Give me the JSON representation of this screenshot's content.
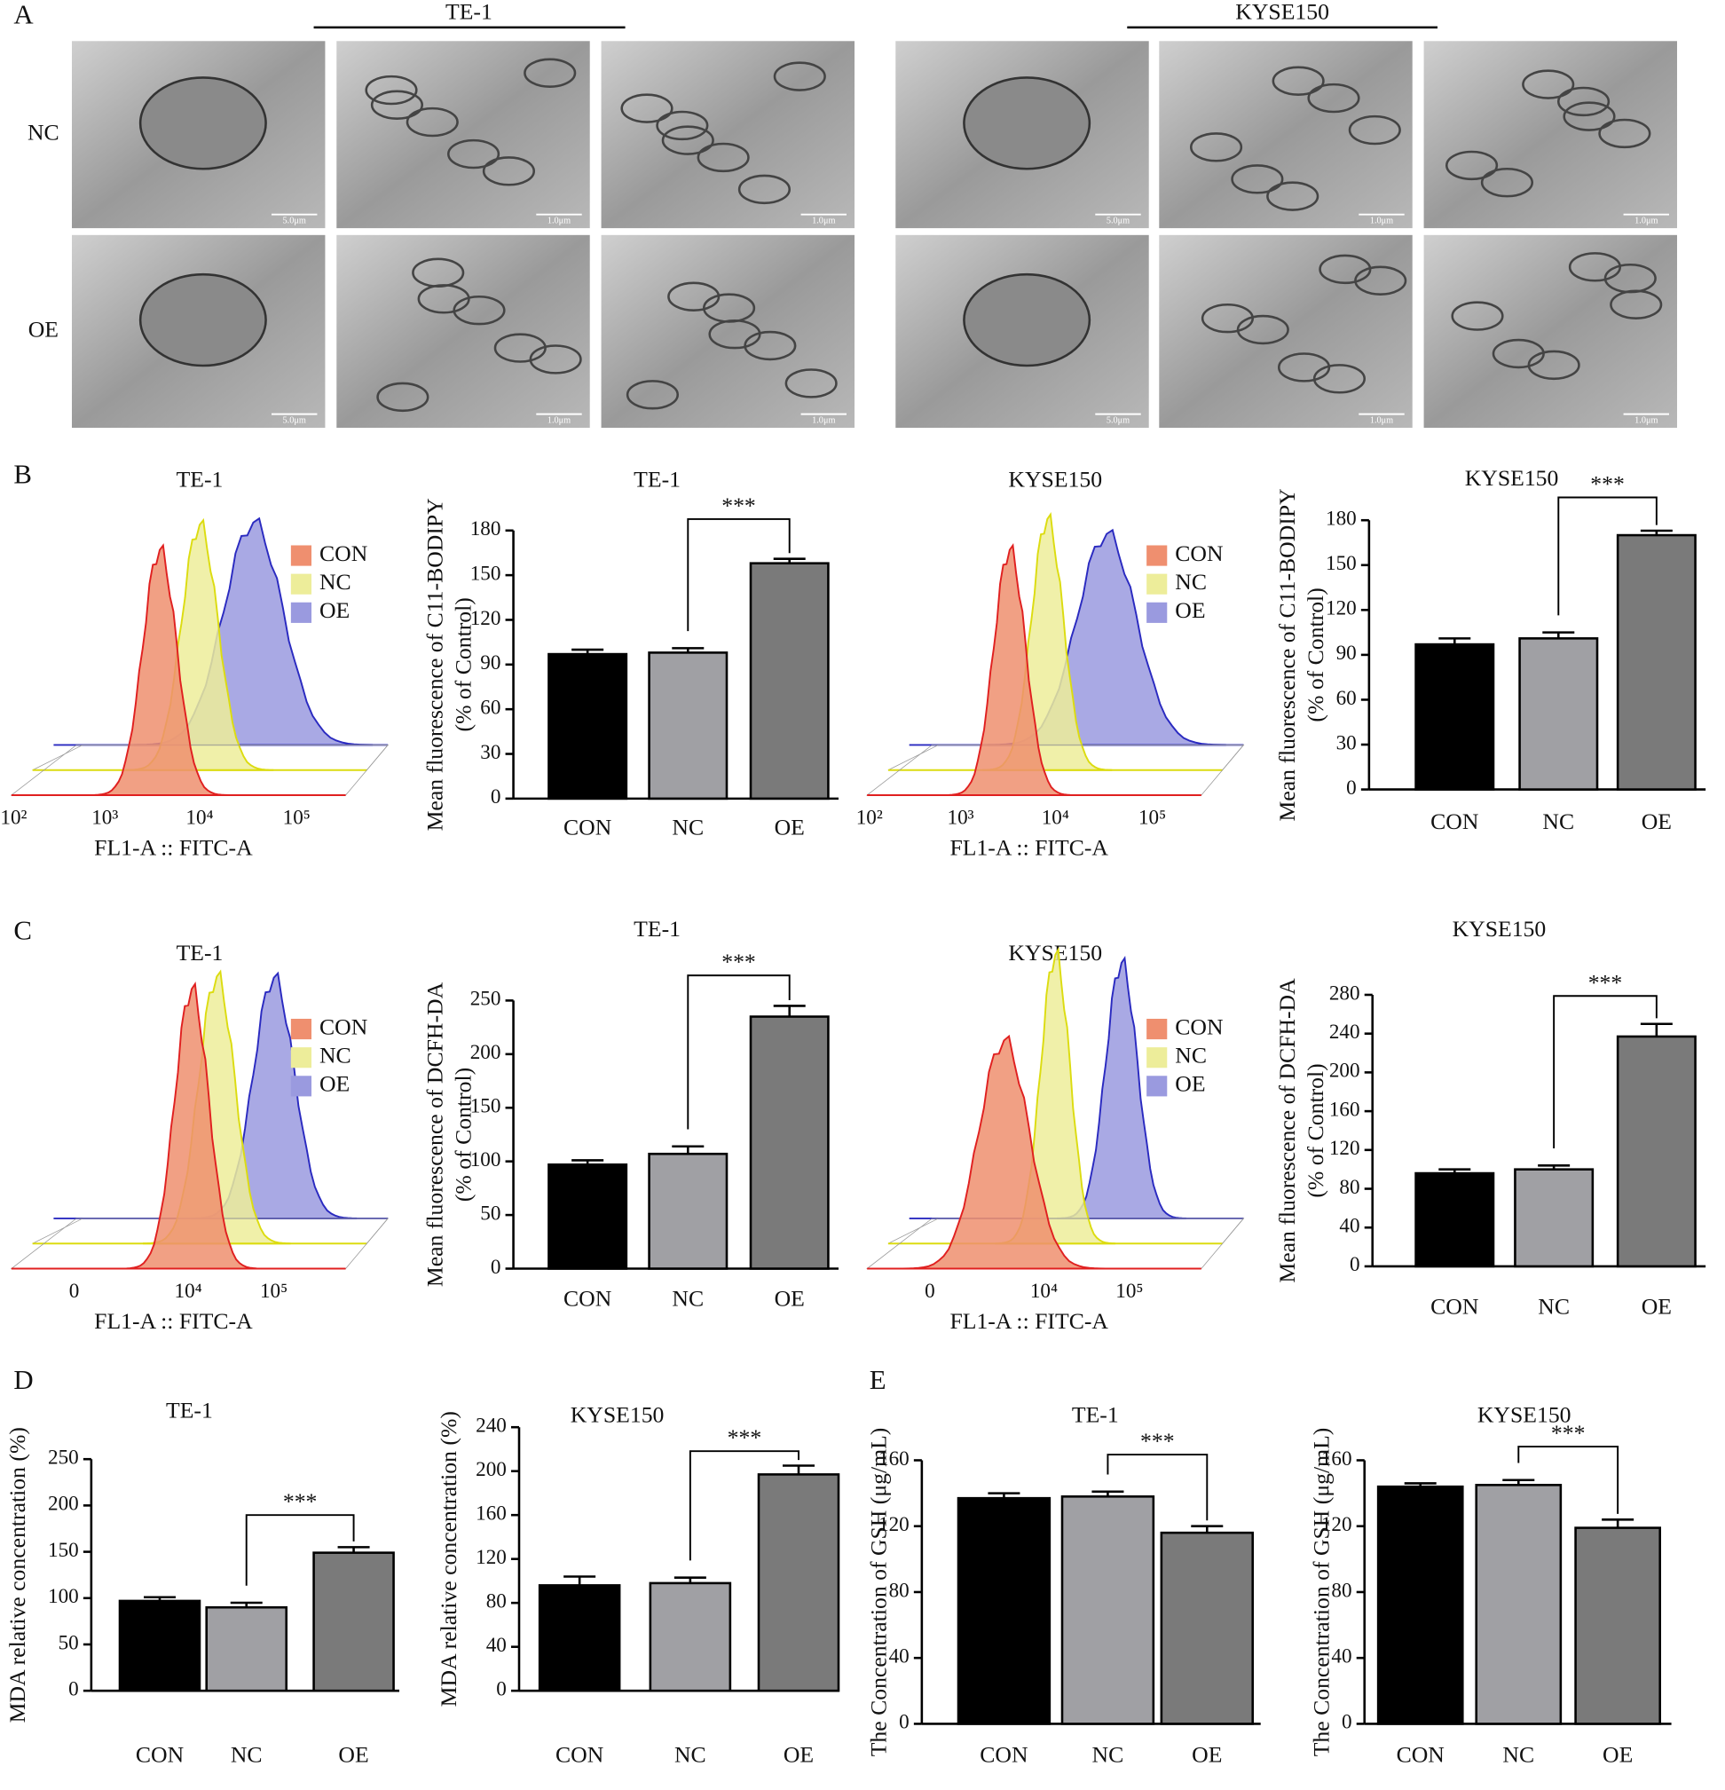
{
  "panel_labels": [
    "A",
    "B",
    "C",
    "D",
    "E"
  ],
  "tem": {
    "groups": [
      "TE-1",
      "KYSE150"
    ],
    "rows": [
      "NC",
      "OE"
    ],
    "scale_bars": [
      "5.0μm",
      "1.0μm",
      "1.0μm",
      "5.0μm",
      "1.0μm",
      "1.0μm"
    ]
  },
  "flow_panels": [
    {
      "title": "TE-1",
      "xlabel": "FL1-A :: FITC-A",
      "xtick_labels": [
        "10²",
        "10³",
        "10⁴",
        "10⁵"
      ],
      "legend": [
        {
          "name": "CON",
          "color": "#ef8f6f"
        },
        {
          "name": "NC",
          "color": "#eded9a"
        },
        {
          "name": "OE",
          "color": "#9a9adf"
        }
      ]
    },
    {
      "title": "KYSE150",
      "xlabel": "FL1-A :: FITC-A",
      "xtick_labels": [
        "10²",
        "10³",
        "10⁴",
        "10⁵"
      ],
      "legend": [
        {
          "name": "CON",
          "color": "#ef8f6f"
        },
        {
          "name": "NC",
          "color": "#eded9a"
        },
        {
          "name": "OE",
          "color": "#9a9adf"
        }
      ]
    },
    {
      "title": "TE-1",
      "xlabel": "FL1-A :: FITC-A",
      "xtick_labels": [
        "0",
        "10⁴",
        "10⁵"
      ],
      "legend": [
        {
          "name": "CON",
          "color": "#ef8f6f"
        },
        {
          "name": "NC",
          "color": "#eded9a"
        },
        {
          "name": "OE",
          "color": "#9a9adf"
        }
      ]
    },
    {
      "title": "KYSE150",
      "xlabel": "FL1-A :: FITC-A",
      "xtick_labels": [
        "0",
        "10⁴",
        "10⁵"
      ],
      "legend": [
        {
          "name": "CON",
          "color": "#ef8f6f"
        },
        {
          "name": "NC",
          "color": "#eded9a"
        },
        {
          "name": "OE",
          "color": "#9a9adf"
        }
      ]
    }
  ],
  "chart_data": [
    {
      "type": "bar",
      "title": "TE-1",
      "ylabel": [
        "Mean fluorescence of C11-BODIPY",
        "(% of Control)"
      ],
      "categories": [
        "CON",
        "NC",
        "OE"
      ],
      "values": [
        97,
        98,
        158
      ],
      "errors": [
        3,
        3,
        3
      ],
      "colors": [
        "#000000",
        "#a0a0a4",
        "#7a7a7a"
      ],
      "ylim": [
        0,
        180
      ],
      "yticks": [
        0,
        30,
        60,
        90,
        120,
        150,
        180
      ],
      "significance": "***"
    },
    {
      "type": "bar",
      "title": "KYSE150",
      "ylabel": [
        "Mean fluorescence of C11-BODIPY",
        "(% of Control)"
      ],
      "categories": [
        "CON",
        "NC",
        "OE"
      ],
      "values": [
        97,
        101,
        170
      ],
      "errors": [
        4,
        4,
        3
      ],
      "colors": [
        "#000000",
        "#a0a0a4",
        "#7a7a7a"
      ],
      "ylim": [
        0,
        180
      ],
      "yticks": [
        0,
        30,
        60,
        90,
        120,
        150,
        180
      ],
      "significance": "***"
    },
    {
      "type": "bar",
      "title": "TE-1",
      "ylabel": [
        "Mean fluorescence of DCFH-DA",
        "(% of Control)"
      ],
      "categories": [
        "CON",
        "NC",
        "OE"
      ],
      "values": [
        97,
        107,
        235
      ],
      "errors": [
        4,
        7,
        10
      ],
      "colors": [
        "#000000",
        "#a0a0a4",
        "#7a7a7a"
      ],
      "ylim": [
        0,
        250
      ],
      "yticks": [
        0,
        50,
        100,
        150,
        200,
        250
      ],
      "significance": "***"
    },
    {
      "type": "bar",
      "title": "KYSE150",
      "ylabel": [
        "Mean fluorescence of DCFH-DA",
        "(% of Control)"
      ],
      "categories": [
        "CON",
        "NC",
        "OE"
      ],
      "values": [
        96,
        100,
        237
      ],
      "errors": [
        4,
        4,
        13
      ],
      "colors": [
        "#000000",
        "#a0a0a4",
        "#7a7a7a"
      ],
      "ylim": [
        0,
        280
      ],
      "yticks": [
        0,
        40,
        80,
        120,
        160,
        200,
        240,
        280
      ],
      "significance": "***"
    },
    {
      "type": "bar",
      "title": "TE-1",
      "ylabel": [
        "MDA relative concentration (%)"
      ],
      "categories": [
        "CON",
        "NC",
        "OE"
      ],
      "values": [
        97,
        90,
        149
      ],
      "errors": [
        4,
        5,
        6
      ],
      "colors": [
        "#000000",
        "#a0a0a4",
        "#7a7a7a"
      ],
      "ylim": [
        0,
        250
      ],
      "yticks": [
        0,
        50,
        100,
        150,
        200,
        250
      ],
      "significance": "***"
    },
    {
      "type": "bar",
      "title": "KYSE150",
      "ylabel": [
        "MDA relative concentration (%)"
      ],
      "categories": [
        "CON",
        "NC",
        "OE"
      ],
      "values": [
        96,
        98,
        197
      ],
      "errors": [
        8,
        5,
        8
      ],
      "colors": [
        "#000000",
        "#a0a0a4",
        "#7a7a7a"
      ],
      "ylim": [
        0,
        240
      ],
      "yticks": [
        0,
        40,
        80,
        120,
        160,
        200,
        240
      ],
      "significance": "***"
    },
    {
      "type": "bar",
      "title": "TE-1",
      "ylabel": [
        "The Concentration of GSH (μg/mL)"
      ],
      "categories": [
        "CON",
        "NC",
        "OE"
      ],
      "values": [
        137,
        138,
        116
      ],
      "errors": [
        3,
        3,
        4
      ],
      "colors": [
        "#000000",
        "#a0a0a4",
        "#7a7a7a"
      ],
      "ylim": [
        0,
        160
      ],
      "yticks": [
        0,
        40,
        80,
        120,
        160
      ],
      "significance": "***"
    },
    {
      "type": "bar",
      "title": "KYSE150",
      "ylabel": [
        "The Concentration of GSH (μg/mL)"
      ],
      "categories": [
        "CON",
        "NC",
        "OE"
      ],
      "values": [
        144,
        145,
        119
      ],
      "errors": [
        2,
        3,
        5
      ],
      "colors": [
        "#000000",
        "#a0a0a4",
        "#7a7a7a"
      ],
      "ylim": [
        0,
        160
      ],
      "yticks": [
        0,
        40,
        80,
        120,
        160
      ],
      "significance": "***"
    }
  ]
}
